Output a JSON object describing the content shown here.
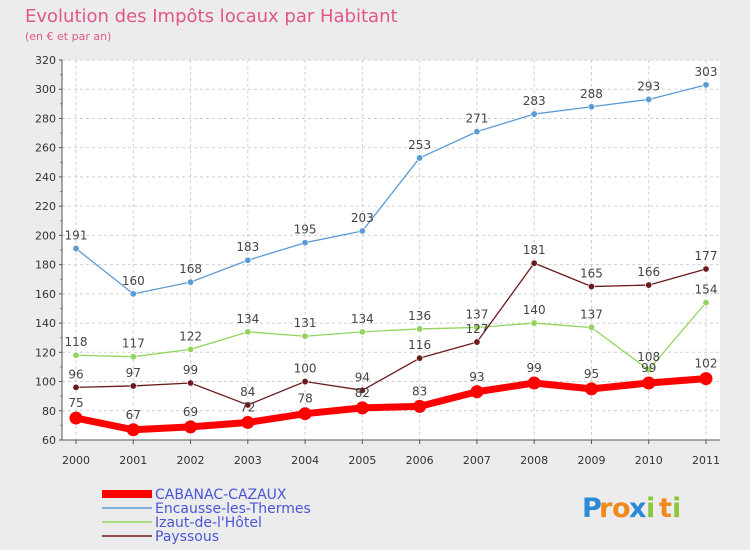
{
  "chart_data": {
    "type": "line",
    "title": "Evolution des Impôts locaux par Habitant",
    "subtitle": "(en € et par an)",
    "xlabel": "",
    "ylabel": "",
    "ylim": [
      60,
      320
    ],
    "yticks": [
      60,
      80,
      100,
      120,
      140,
      160,
      180,
      200,
      220,
      240,
      260,
      280,
      300,
      320
    ],
    "grid": true,
    "legend_position": "bottom-left",
    "x": [
      "2000",
      "2001",
      "2002",
      "2003",
      "2004",
      "2005",
      "2006",
      "2007",
      "2008",
      "2009",
      "2010",
      "2011"
    ],
    "series": [
      {
        "name": "Encausse-les-Thermes",
        "color": "#5b9bd5",
        "values": [
          191,
          160,
          168,
          183,
          195,
          203,
          253,
          271,
          283,
          288,
          293,
          303
        ]
      },
      {
        "name": "Izaut-de-l'Hôtel",
        "color": "#93d35b",
        "values": [
          118,
          117,
          122,
          134,
          131,
          134,
          136,
          137,
          140,
          137,
          108,
          154
        ]
      },
      {
        "name": "Payssous",
        "color": "#6b1b1b",
        "values": [
          96,
          97,
          99,
          84,
          100,
          94,
          116,
          127,
          181,
          165,
          166,
          177
        ]
      },
      {
        "name": "CABANAC-CAZAUX",
        "color": "#ff0000",
        "values": [
          75,
          67,
          69,
          72,
          78,
          82,
          83,
          93,
          99,
          95,
          99,
          102
        ]
      }
    ]
  },
  "legend_order": [
    3,
    0,
    1,
    2
  ],
  "logo": {
    "letters": [
      "P",
      "r",
      "o",
      "x",
      "i",
      "t",
      "i"
    ],
    "colors": [
      "#2b8ad8",
      "#f08a1c",
      "#f08a1c",
      "#2b8ad8",
      "#8cc63f",
      "#f08a1c",
      "#8cc63f"
    ]
  }
}
